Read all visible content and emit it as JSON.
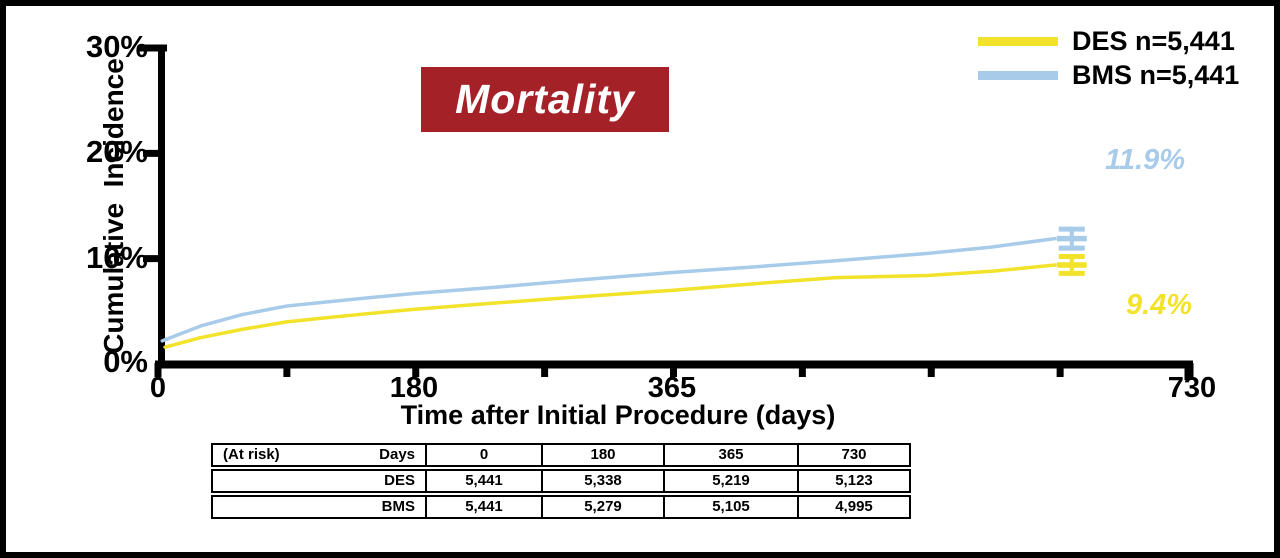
{
  "figure": {
    "title_bg": "#A32127"
  },
  "chart_data": {
    "type": "line",
    "title": "Mortality",
    "xlabel": "Time after Initial Procedure (days)",
    "ylabel": "Cumulative  Incidence",
    "xlim_days": [
      0,
      730
    ],
    "ylim_pct": [
      0,
      30
    ],
    "x_tick_labels": [
      "0",
      "180",
      "365",
      "730"
    ],
    "x_tick_label_days": [
      0,
      180,
      365,
      730
    ],
    "x_minor_tick_count": 9,
    "y_tick_labels": [
      "0%",
      "10%",
      "20%",
      "30%"
    ],
    "y_tick_pcts": [
      0,
      10,
      20,
      30
    ],
    "grid": false,
    "legend_position": "top-right",
    "series": [
      {
        "name": "DES n=5,441",
        "color": "#F2E32A",
        "final_label": "9.4%",
        "error_bar": {
          "day": 647,
          "center_pct": 9.4,
          "half_width_pct": 0.8
        },
        "points_day_pct": [
          [
            5,
            1.6
          ],
          [
            30,
            2.5
          ],
          [
            60,
            3.3
          ],
          [
            91,
            4.0
          ],
          [
            120,
            4.4
          ],
          [
            150,
            4.8
          ],
          [
            182,
            5.2
          ],
          [
            240,
            5.8
          ],
          [
            300,
            6.4
          ],
          [
            365,
            7.0
          ],
          [
            420,
            7.6
          ],
          [
            480,
            8.2
          ],
          [
            545,
            8.4
          ],
          [
            590,
            8.8
          ],
          [
            635,
            9.4
          ]
        ]
      },
      {
        "name": "BMS n=5,441",
        "color": "#A7CBE9",
        "final_label": "11.9%",
        "error_bar": {
          "day": 647,
          "center_pct": 11.9,
          "half_width_pct": 0.9
        },
        "points_day_pct": [
          [
            3,
            2.2
          ],
          [
            30,
            3.6
          ],
          [
            60,
            4.7
          ],
          [
            91,
            5.5
          ],
          [
            120,
            5.9
          ],
          [
            150,
            6.3
          ],
          [
            182,
            6.7
          ],
          [
            240,
            7.3
          ],
          [
            300,
            8.0
          ],
          [
            365,
            8.7
          ],
          [
            420,
            9.2
          ],
          [
            480,
            9.8
          ],
          [
            545,
            10.5
          ],
          [
            590,
            11.1
          ],
          [
            635,
            11.9
          ]
        ]
      }
    ]
  },
  "risk_table": {
    "caption": "(At risk)",
    "header_label": "Days",
    "columns": [
      "0",
      "180",
      "365",
      "730"
    ],
    "rows": [
      {
        "label": "DES",
        "values": [
          "5,441",
          "5,338",
          "5,219",
          "5,123"
        ]
      },
      {
        "label": "BMS",
        "values": [
          "5,441",
          "5,279",
          "5,105",
          "4,995"
        ]
      }
    ]
  }
}
